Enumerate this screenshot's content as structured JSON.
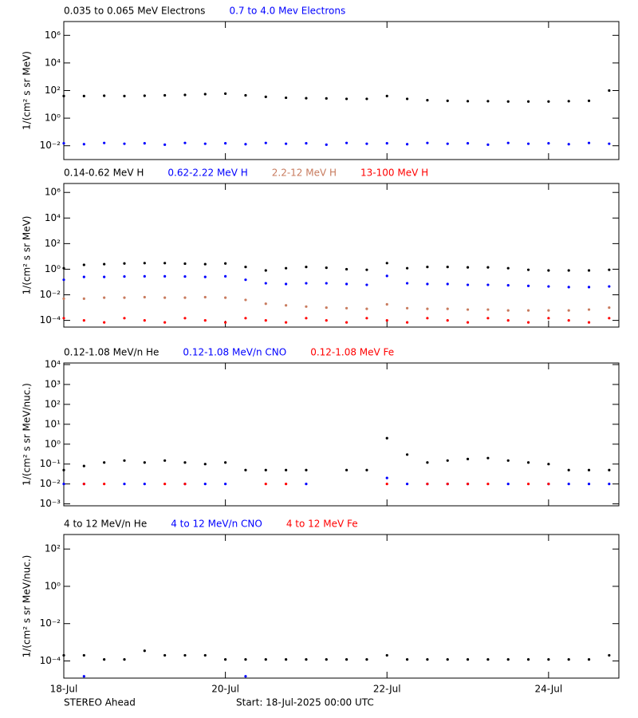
{
  "chart_data": [
    {
      "type": "scatter",
      "ylabel": "1/(cm² s sr MeV)",
      "log_y": true,
      "ylim": [
        0.001,
        10000000
      ],
      "yticks": [
        {
          "value": 0.01,
          "label": "10⁻²"
        },
        {
          "value": 1,
          "label": "10⁰"
        },
        {
          "value": 100,
          "label": "10²"
        },
        {
          "value": 10000,
          "label": "10⁴"
        },
        {
          "value": 1000000,
          "label": "10⁶"
        }
      ],
      "x": [
        0,
        0.25,
        0.5,
        0.75,
        1,
        1.25,
        1.5,
        1.75,
        2,
        2.25,
        2.5,
        2.75,
        3,
        3.25,
        3.5,
        3.75,
        4,
        4.25,
        4.5,
        4.75,
        5,
        5.25,
        5.5,
        5.75,
        6,
        6.25,
        6.5,
        6.75
      ],
      "series": [
        {
          "name": "0.035 to 0.065 MeV Electrons",
          "color": "#000000",
          "values": [
            40,
            40,
            42,
            40,
            42,
            45,
            48,
            55,
            60,
            45,
            35,
            30,
            28,
            27,
            25,
            25,
            40,
            25,
            20,
            18,
            17,
            17,
            16,
            16,
            16,
            17,
            18,
            100
          ]
        },
        {
          "name": "0.7 to 4.0 Mev Electrons",
          "color": "#0000ff",
          "values": [
            0.015,
            0.013,
            0.016,
            0.014,
            0.015,
            0.012,
            0.016,
            0.014,
            0.015,
            0.013,
            0.016,
            0.014,
            0.015,
            0.012,
            0.016,
            0.014,
            0.015,
            0.013,
            0.016,
            0.014,
            0.015,
            0.012,
            0.016,
            0.014,
            0.015,
            0.013,
            0.016,
            0.014
          ]
        }
      ]
    },
    {
      "type": "scatter",
      "ylabel": "1/(cm² s sr MeV)",
      "log_y": true,
      "ylim": [
        3e-05,
        5000000
      ],
      "yticks": [
        {
          "value": 0.0001,
          "label": "10⁻⁴"
        },
        {
          "value": 0.01,
          "label": "10⁻²"
        },
        {
          "value": 1,
          "label": "10⁰"
        },
        {
          "value": 100,
          "label": "10²"
        },
        {
          "value": 10000,
          "label": "10⁴"
        },
        {
          "value": 1000000,
          "label": "10⁶"
        }
      ],
      "x": [
        0,
        0.25,
        0.5,
        0.75,
        1,
        1.25,
        1.5,
        1.75,
        2,
        2.25,
        2.5,
        2.75,
        3,
        3.25,
        3.5,
        3.75,
        4,
        4.25,
        4.5,
        4.75,
        5,
        5.25,
        5.5,
        5.75,
        6,
        6.25,
        6.5,
        6.75
      ],
      "series": [
        {
          "name": "0.14-0.62 MeV H",
          "color": "#000000",
          "values": [
            1.2,
            2.2,
            2.5,
            2.8,
            3,
            3,
            2.7,
            2.5,
            2.8,
            1.5,
            0.8,
            1.2,
            1.5,
            1.3,
            1,
            0.9,
            3,
            1.2,
            1.5,
            1.5,
            1.4,
            1.4,
            1.2,
            0.9,
            0.8,
            0.8,
            0.8,
            0.9
          ]
        },
        {
          "name": "0.62-2.22 MeV H",
          "color": "#0000ff",
          "values": [
            0.15,
            0.25,
            0.25,
            0.27,
            0.28,
            0.28,
            0.27,
            0.25,
            0.28,
            0.15,
            0.08,
            0.07,
            0.08,
            0.08,
            0.07,
            0.06,
            0.3,
            0.08,
            0.07,
            0.07,
            0.06,
            0.06,
            0.055,
            0.05,
            0.045,
            0.04,
            0.04,
            0.045
          ]
        },
        {
          "name": "2.2-12 MeV H",
          "color": "#c87b5e",
          "values": [
            0.005,
            0.005,
            0.006,
            0.006,
            0.0065,
            0.006,
            0.006,
            0.0065,
            0.006,
            0.004,
            0.002,
            0.0015,
            0.0012,
            0.001,
            0.0009,
            0.0008,
            0.0018,
            0.0009,
            0.0008,
            0.0008,
            0.0007,
            0.0007,
            0.0006,
            0.0006,
            0.0006,
            0.0006,
            0.0007,
            0.001
          ]
        },
        {
          "name": "13-100 MeV H",
          "color": "#ff0000",
          "values": [
            0.00015,
            0.0001,
            7e-05,
            0.00015,
            0.0001,
            7e-05,
            0.00015,
            0.0001,
            7e-05,
            0.00015,
            0.0001,
            7e-05,
            0.00015,
            0.0001,
            7e-05,
            0.00015,
            0.0001,
            7e-05,
            0.00015,
            0.0001,
            7e-05,
            0.00015,
            0.0001,
            7e-05,
            0.00015,
            0.0001,
            7e-05,
            0.00015
          ]
        }
      ]
    },
    {
      "type": "scatter",
      "ylabel": "1/(cm² s sr MeV/nuc.)",
      "log_y": true,
      "ylim": [
        0.0008,
        12000
      ],
      "yticks": [
        {
          "value": 0.001,
          "label": "10⁻³"
        },
        {
          "value": 0.01,
          "label": "10⁻²"
        },
        {
          "value": 0.1,
          "label": "10⁻¹"
        },
        {
          "value": 1,
          "label": "10⁰"
        },
        {
          "value": 10,
          "label": "10¹"
        },
        {
          "value": 100,
          "label": "10²"
        },
        {
          "value": 1000,
          "label": "10³"
        },
        {
          "value": 10000,
          "label": "10⁴"
        }
      ],
      "x": [
        0,
        0.25,
        0.5,
        0.75,
        1,
        1.25,
        1.5,
        1.75,
        2,
        2.25,
        2.5,
        2.75,
        3,
        3.25,
        3.5,
        3.75,
        4,
        4.25,
        4.5,
        4.75,
        5,
        5.25,
        5.5,
        5.75,
        6,
        6.25,
        6.5,
        6.75
      ],
      "series": [
        {
          "name": "0.12-1.08 MeV/n He",
          "color": "#000000",
          "values": [
            0.05,
            0.08,
            0.12,
            0.15,
            0.12,
            0.15,
            0.12,
            0.1,
            0.12,
            0.05,
            0.05,
            0.05,
            0.05,
            null,
            0.05,
            0.05,
            2,
            0.3,
            0.12,
            0.15,
            0.18,
            0.2,
            0.15,
            0.12,
            0.1,
            0.05,
            0.05,
            0.05
          ]
        },
        {
          "name": "0.12-1.08 MeV/n CNO",
          "color": "#0000ff",
          "values": [
            0.01,
            0.01,
            null,
            0.01,
            0.01,
            null,
            0.01,
            0.01,
            0.01,
            null,
            null,
            null,
            0.01,
            null,
            null,
            null,
            0.02,
            0.01,
            0.01,
            0.01,
            0.01,
            null,
            0.01,
            null,
            0.01,
            0.01,
            0.01,
            0.01
          ]
        },
        {
          "name": "0.12-1.08 MeV Fe",
          "color": "#ff0000",
          "values": [
            null,
            0.01,
            0.01,
            null,
            null,
            0.01,
            0.01,
            null,
            null,
            null,
            0.01,
            0.01,
            null,
            null,
            null,
            null,
            0.01,
            null,
            0.01,
            0.01,
            0.01,
            0.01,
            null,
            0.01,
            0.01,
            null,
            null,
            null
          ]
        }
      ]
    },
    {
      "type": "scatter",
      "ylabel": "1/(cm² s sr MeV/nuc.)",
      "log_y": true,
      "ylim": [
        1.2e-05,
        600
      ],
      "yticks": [
        {
          "value": 0.0001,
          "label": "10⁻⁴"
        },
        {
          "value": 0.01,
          "label": "10⁻²"
        },
        {
          "value": 1,
          "label": "10⁰"
        },
        {
          "value": 100,
          "label": "10²"
        }
      ],
      "xlim": [
        0,
        6.87
      ],
      "xticks": [
        {
          "value": 0,
          "label": "18-Jul"
        },
        {
          "value": 2,
          "label": "20-Jul"
        },
        {
          "value": 4,
          "label": "22-Jul"
        },
        {
          "value": 6,
          "label": "24-Jul"
        }
      ],
      "x": [
        0,
        0.25,
        0.5,
        0.75,
        1,
        1.25,
        1.5,
        1.75,
        2,
        2.25,
        2.5,
        2.75,
        3,
        3.25,
        3.5,
        3.75,
        4,
        4.25,
        4.5,
        4.75,
        5,
        5.25,
        5.5,
        5.75,
        6,
        6.25,
        6.5,
        6.75
      ],
      "series": [
        {
          "name": "4 to 12 MeV/n He",
          "color": "#000000",
          "values": [
            0.0002,
            0.0002,
            0.00012,
            0.00012,
            0.00035,
            0.0002,
            0.0002,
            0.0002,
            0.00012,
            0.00012,
            0.00012,
            0.00012,
            0.00012,
            0.00012,
            0.00012,
            0.00012,
            0.0002,
            0.00012,
            0.00012,
            0.00012,
            0.00012,
            0.00012,
            0.00012,
            0.00012,
            0.00012,
            0.00012,
            0.00012,
            0.0002
          ]
        },
        {
          "name": "4 to 12 MeV/n CNO",
          "color": "#0000ff",
          "values": [
            null,
            1.5e-05,
            null,
            null,
            null,
            null,
            null,
            null,
            null,
            1.5e-05,
            null,
            null,
            null,
            null,
            null,
            null,
            null,
            null,
            null,
            null,
            null,
            null,
            null,
            null,
            null,
            null,
            null,
            null
          ]
        },
        {
          "name": "4 to 12 MeV Fe",
          "color": "#ff0000",
          "values": [
            null,
            null,
            null,
            null,
            null,
            null,
            null,
            null,
            null,
            null,
            null,
            null,
            null,
            null,
            null,
            null,
            null,
            null,
            null,
            null,
            null,
            null,
            null,
            null,
            null,
            null,
            null,
            null
          ]
        }
      ]
    }
  ],
  "footer": {
    "left": "STEREO Ahead",
    "center": "Start: 18-Jul-2025 00:00 UTC"
  }
}
